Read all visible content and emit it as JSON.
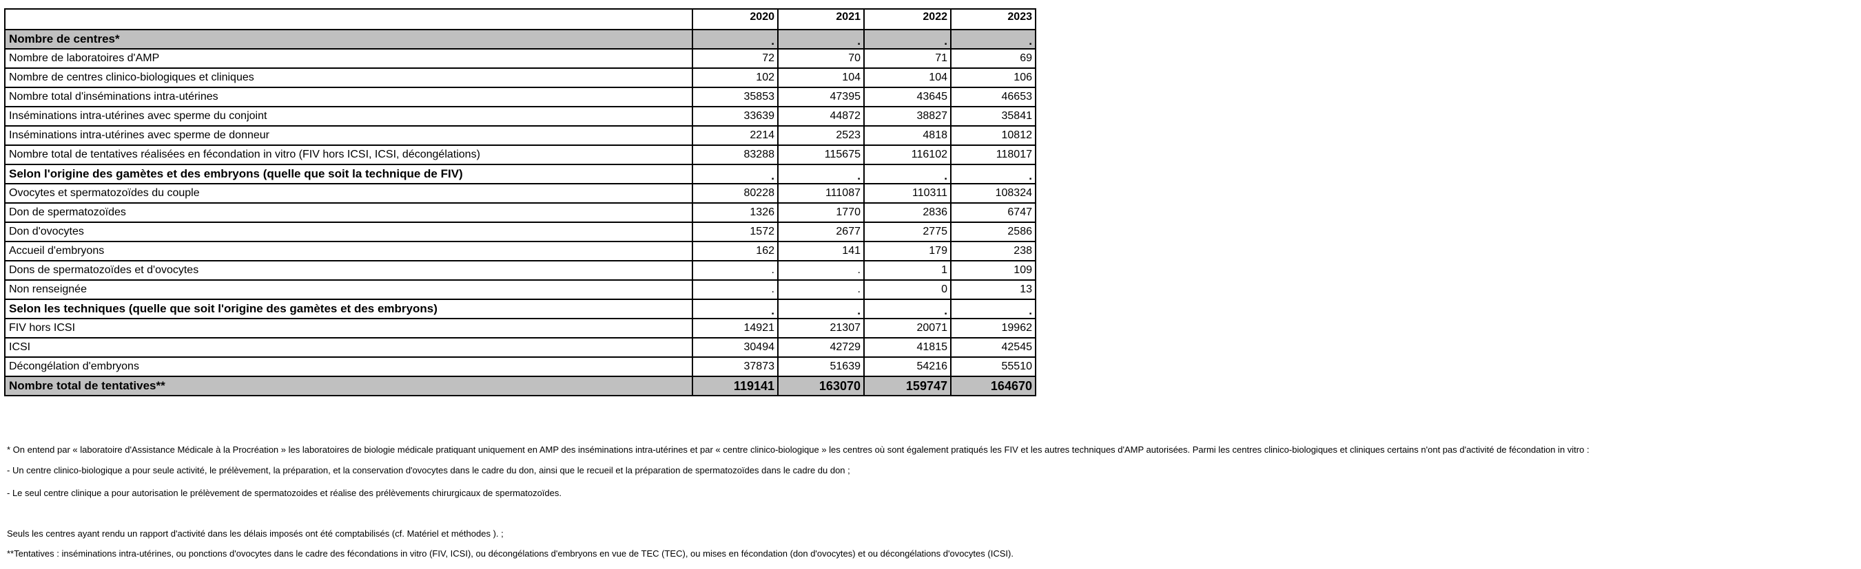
{
  "table": {
    "years": [
      "2020",
      "2021",
      "2022",
      "2023"
    ],
    "rows": [
      {
        "type": "section-gray",
        "label": "Nombre de centres*",
        "values": [
          ".",
          ".",
          ".",
          "."
        ]
      },
      {
        "type": "data",
        "label": "Nombre de laboratoires d'AMP",
        "values": [
          "72",
          "70",
          "71",
          "69"
        ]
      },
      {
        "type": "data",
        "label": "Nombre de centres clinico-biologiques et cliniques",
        "values": [
          "102",
          "104",
          "104",
          "106"
        ]
      },
      {
        "type": "data",
        "label": "Nombre total d'inséminations intra-utérines",
        "values": [
          "35853",
          "47395",
          "43645",
          "46653"
        ]
      },
      {
        "type": "data",
        "label": "Inséminations intra-utérines avec sperme du conjoint",
        "values": [
          "33639",
          "44872",
          "38827",
          "35841"
        ]
      },
      {
        "type": "data",
        "label": "Inséminations intra-utérines avec sperme de donneur",
        "values": [
          "2214",
          "2523",
          "4818",
          "10812"
        ]
      },
      {
        "type": "data",
        "label": "Nombre total de tentatives réalisées en fécondation in vitro (FIV hors ICSI, ICSI, décongélations)",
        "values": [
          "83288",
          "115675",
          "116102",
          "118017"
        ]
      },
      {
        "type": "section",
        "label": "Selon l'origine des gamètes et des embryons (quelle que soit la technique de FIV)",
        "values": [
          ".",
          ".",
          ".",
          "."
        ]
      },
      {
        "type": "data",
        "label": "Ovocytes et spermatozoïdes du couple",
        "values": [
          "80228",
          "111087",
          "110311",
          "108324"
        ]
      },
      {
        "type": "data",
        "label": "Don de spermatozoïdes",
        "values": [
          "1326",
          "1770",
          "2836",
          "6747"
        ]
      },
      {
        "type": "data",
        "label": "Don d'ovocytes",
        "values": [
          "1572",
          "2677",
          "2775",
          "2586"
        ]
      },
      {
        "type": "data",
        "label": "Accueil d'embryons",
        "values": [
          "162",
          "141",
          "179",
          "238"
        ]
      },
      {
        "type": "data",
        "label": "Dons de spermatozoïdes et d'ovocytes",
        "values": [
          ".",
          ".",
          "1",
          "109"
        ]
      },
      {
        "type": "data",
        "label": "Non renseignée",
        "values": [
          ".",
          ".",
          "0",
          "13"
        ]
      },
      {
        "type": "section",
        "label": "Selon les techniques (quelle que soit l'origine des gamètes et des embryons)",
        "values": [
          ".",
          ".",
          ".",
          "."
        ]
      },
      {
        "type": "data",
        "label": "FIV hors ICSI",
        "values": [
          "14921",
          "21307",
          "20071",
          "19962"
        ]
      },
      {
        "type": "data",
        "label": "ICSI",
        "values": [
          "30494",
          "42729",
          "41815",
          "42545"
        ]
      },
      {
        "type": "data",
        "label": "Décongélation d'embryons",
        "values": [
          "37873",
          "51639",
          "54216",
          "55510"
        ]
      },
      {
        "type": "total",
        "label": "Nombre total de tentatives**",
        "values": [
          "119141",
          "163070",
          "159747",
          "164670"
        ]
      }
    ]
  },
  "notes": [
    "* On entend par « laboratoire d'Assistance Médicale à la Procréation » les laboratoires de biologie médicale pratiquant uniquement en AMP des inséminations intra-utérines et par « centre clinico-biologique » les centres où sont également pratiqués les FIV et les autres techniques d'AMP autorisées. Parmi les centres clinico-biologiques et cliniques certains n'ont pas d'activité de fécondation in vitro :",
    "- Un centre clinico-biologique a pour seule activité, le prélèvement, la préparation, et la conservation d'ovocytes dans le cadre du don, ainsi que le recueil et la préparation de spermatozoïdes dans le cadre du don ;",
    "- Le seul centre clinique a pour autorisation le prélèvement de spermatozoides et réalise des prélèvements chirurgicaux de spermatozoïdes.",
    "Seuls les centres ayant rendu un rapport d'activité dans les délais imposés ont été comptabilisés (cf. Matériel et méthodes ). ;",
    "**Tentatives : inséminations intra-utérines, ou ponctions d'ovocytes dans le cadre des fécondations in vitro (FIV, ICSI), ou décongélations d'embryons en vue de TEC (TEC), ou mises en fécondation (don d'ovocytes) et ou décongélations d'ovocytes (ICSI)."
  ],
  "colors": {
    "section_gray": "#c0c0c0",
    "border": "#000000"
  }
}
